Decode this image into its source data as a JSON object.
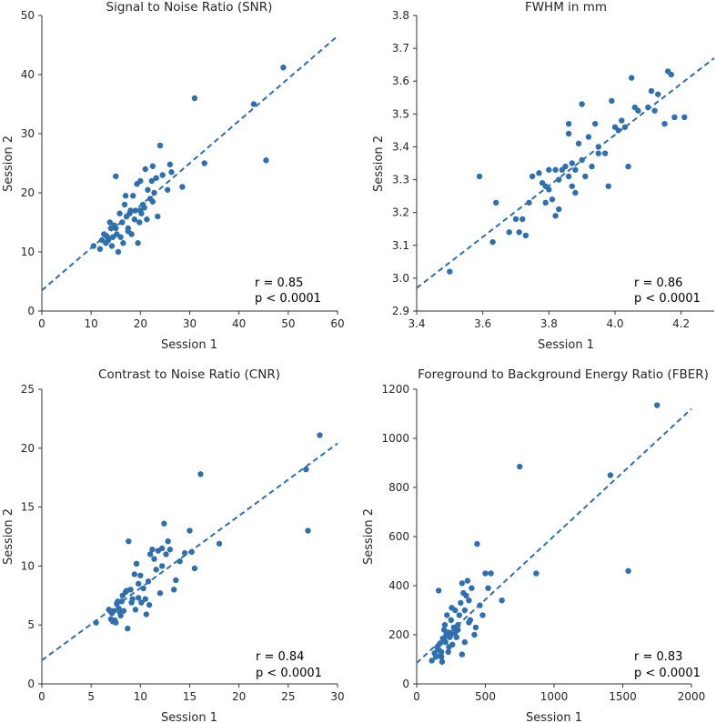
{
  "colors": {
    "point": "#2f6fae",
    "fit_line": "#2f6fae",
    "axis": "#333333",
    "text": "#262626"
  },
  "chart_data": [
    {
      "type": "scatter",
      "title": "Signal to Noise Ratio (SNR)",
      "xlabel": "Session 1",
      "ylabel": "Session 2",
      "xlim": [
        0,
        60
      ],
      "ylim": [
        0,
        50
      ],
      "xticks": [
        0,
        10,
        20,
        30,
        40,
        50,
        60
      ],
      "yticks": [
        0,
        10,
        20,
        30,
        40,
        50
      ],
      "x": [
        10.5,
        11.8,
        12.2,
        12.6,
        13.0,
        13.3,
        13.5,
        13.8,
        14.0,
        14.2,
        14.4,
        14.7,
        15.0,
        15.2,
        15.5,
        15.8,
        16.0,
        16.3,
        16.5,
        16.8,
        17.0,
        17.2,
        17.5,
        17.8,
        18.0,
        18.2,
        18.5,
        18.8,
        19.0,
        19.3,
        19.5,
        19.8,
        20.0,
        20.2,
        20.5,
        20.8,
        21.0,
        21.3,
        21.5,
        22.0,
        22.3,
        22.5,
        22.8,
        23.2,
        23.5,
        24.0,
        24.5,
        25.5,
        26.0,
        26.3,
        28.5,
        31.0,
        33.0,
        43.0,
        45.5,
        49.0,
        15.0,
        17.5,
        20.0,
        22.5
      ],
      "y": [
        11.0,
        10.5,
        12.0,
        13.0,
        11.5,
        12.5,
        12.0,
        15.0,
        14.0,
        11.0,
        12.5,
        14.5,
        22.8,
        13.0,
        10.0,
        16.5,
        12.5,
        15.0,
        11.5,
        18.0,
        19.5,
        16.0,
        14.0,
        16.5,
        17.0,
        13.0,
        19.5,
        15.5,
        17.0,
        21.5,
        11.5,
        15.0,
        22.0,
        16.5,
        18.0,
        17.5,
        24.0,
        15.5,
        20.5,
        19.0,
        22.0,
        24.5,
        20.0,
        22.5,
        16.0,
        28.0,
        23.0,
        20.5,
        24.8,
        23.5,
        21.0,
        36.0,
        25.0,
        35.0,
        25.5,
        41.2,
        14.0,
        13.5,
        17.0,
        18.5
      ],
      "fit": {
        "x": [
          0,
          60
        ],
        "y": [
          3.5,
          46.5
        ]
      },
      "annotation": {
        "r": "r = 0.85",
        "p": "p < 0.0001"
      }
    },
    {
      "type": "scatter",
      "title": "FWHM in mm",
      "xlabel": "Session 1",
      "ylabel": "Session 2",
      "xlim": [
        3.4,
        4.3
      ],
      "ylim": [
        2.9,
        3.8
      ],
      "xticks": [
        3.4,
        3.6,
        3.8,
        4.0,
        4.2
      ],
      "yticks": [
        2.9,
        3.0,
        3.1,
        3.2,
        3.3,
        3.4,
        3.5,
        3.6,
        3.7,
        3.8
      ],
      "x": [
        3.5,
        3.59,
        3.63,
        3.64,
        3.68,
        3.7,
        3.71,
        3.72,
        3.73,
        3.74,
        3.75,
        3.77,
        3.78,
        3.79,
        3.8,
        3.8,
        3.81,
        3.82,
        3.83,
        3.83,
        3.84,
        3.85,
        3.86,
        3.86,
        3.87,
        3.87,
        3.88,
        3.88,
        3.89,
        3.9,
        3.9,
        3.91,
        3.92,
        3.93,
        3.94,
        3.95,
        3.97,
        3.98,
        3.99,
        4.0,
        4.01,
        4.02,
        4.03,
        4.04,
        4.05,
        4.06,
        4.07,
        4.1,
        4.11,
        4.12,
        4.13,
        4.15,
        4.16,
        4.17,
        4.18,
        4.21,
        3.82,
        3.95,
        3.86,
        3.79
      ],
      "y": [
        3.02,
        3.31,
        3.11,
        3.23,
        3.14,
        3.18,
        3.14,
        3.18,
        3.13,
        3.23,
        3.31,
        3.32,
        3.29,
        3.23,
        3.27,
        3.33,
        3.24,
        3.19,
        3.3,
        3.21,
        3.33,
        3.34,
        3.31,
        3.47,
        3.28,
        3.35,
        3.33,
        3.26,
        3.41,
        3.36,
        3.53,
        3.31,
        3.43,
        3.34,
        3.47,
        3.4,
        3.38,
        3.28,
        3.54,
        3.46,
        3.45,
        3.48,
        3.46,
        3.34,
        3.61,
        3.52,
        3.51,
        3.52,
        3.57,
        3.51,
        3.56,
        3.47,
        3.63,
        3.62,
        3.49,
        3.49,
        3.33,
        3.38,
        3.44,
        3.28
      ],
      "fit": {
        "x": [
          3.4,
          4.3
        ],
        "y": [
          2.97,
          3.67
        ]
      },
      "annotation": {
        "r": "r = 0.86",
        "p": "p < 0.0001"
      }
    },
    {
      "type": "scatter",
      "title": "Contrast to Noise Ratio (CNR)",
      "xlabel": "Session 1",
      "ylabel": "Session 2",
      "xlim": [
        0,
        30
      ],
      "ylim": [
        0,
        25
      ],
      "xticks": [
        0,
        5,
        10,
        15,
        20,
        25,
        30
      ],
      "yticks": [
        0,
        5,
        10,
        15,
        20,
        25
      ],
      "x": [
        5.5,
        6.8,
        7.0,
        7.1,
        7.2,
        7.3,
        7.5,
        7.6,
        7.7,
        7.8,
        7.9,
        8.0,
        8.2,
        8.3,
        8.5,
        8.7,
        8.8,
        9.0,
        9.1,
        9.2,
        9.4,
        9.5,
        9.6,
        9.8,
        10.0,
        10.1,
        10.3,
        10.5,
        10.6,
        10.8,
        11.0,
        11.2,
        11.4,
        11.6,
        11.8,
        12.0,
        12.2,
        12.4,
        12.6,
        12.8,
        13.0,
        13.4,
        14.0,
        14.5,
        15.0,
        15.2,
        15.5,
        16.1,
        18.0,
        26.8,
        27.0,
        28.2,
        8.1,
        9.8,
        10.9,
        12.2,
        13.6,
        6.9,
        7.4,
        8.6
      ],
      "y": [
        5.2,
        6.3,
        5.5,
        6.0,
        5.3,
        6.2,
        5.2,
        6.8,
        7.0,
        6.4,
        6.1,
        5.8,
        7.5,
        6.2,
        7.8,
        4.7,
        12.1,
        8.0,
        6.9,
        7.2,
        9.3,
        6.3,
        10.2,
        8.5,
        9.2,
        6.9,
        8.1,
        7.2,
        5.9,
        8.7,
        11.0,
        11.4,
        10.6,
        9.7,
        11.3,
        7.7,
        11.5,
        13.6,
        11.0,
        12.1,
        11.4,
        8.0,
        10.4,
        11.1,
        13.0,
        11.2,
        9.8,
        17.8,
        11.9,
        18.2,
        13.0,
        21.1,
        7.0,
        7.3,
        6.7,
        10.0,
        8.8,
        6.2,
        5.4,
        7.9
      ],
      "fit": {
        "x": [
          0,
          30
        ],
        "y": [
          2.0,
          20.4
        ]
      },
      "annotation": {
        "r": "r = 0.84",
        "p": "p < 0.0001"
      }
    },
    {
      "type": "scatter",
      "title": "Foreground to Background Energy Ratio (FBER)",
      "xlabel": "Session 1",
      "ylabel": "Session 2",
      "xlim": [
        0,
        2000
      ],
      "ylim": [
        0,
        1200
      ],
      "xticks": [
        0,
        500,
        1000,
        1500,
        2000
      ],
      "yticks": [
        0,
        200,
        400,
        600,
        800,
        1000,
        1200
      ],
      "x": [
        110,
        130,
        140,
        150,
        155,
        160,
        170,
        175,
        180,
        185,
        190,
        200,
        205,
        210,
        215,
        220,
        230,
        235,
        240,
        250,
        255,
        260,
        270,
        280,
        290,
        300,
        310,
        320,
        330,
        340,
        350,
        360,
        370,
        380,
        390,
        400,
        420,
        440,
        460,
        480,
        500,
        520,
        540,
        620,
        750,
        870,
        1410,
        1540,
        1750,
        160,
        200,
        250,
        300,
        350,
        180,
        230,
        280,
        330,
        380,
        430
      ],
      "y": [
        95,
        125,
        110,
        150,
        140,
        380,
        165,
        120,
        130,
        90,
        185,
        220,
        240,
        170,
        200,
        280,
        210,
        150,
        190,
        260,
        310,
        160,
        230,
        300,
        190,
        240,
        280,
        330,
        410,
        370,
        300,
        360,
        420,
        340,
        260,
        390,
        200,
        570,
        320,
        280,
        450,
        390,
        450,
        340,
        885,
        450,
        850,
        460,
        1135,
        140,
        180,
        200,
        220,
        170,
        110,
        130,
        210,
        120,
        250,
        230
      ],
      "fit": {
        "x": [
          0,
          2000
        ],
        "y": [
          85,
          1120
        ]
      },
      "annotation": {
        "r": "r = 0.83",
        "p": "p < 0.0001"
      }
    }
  ]
}
